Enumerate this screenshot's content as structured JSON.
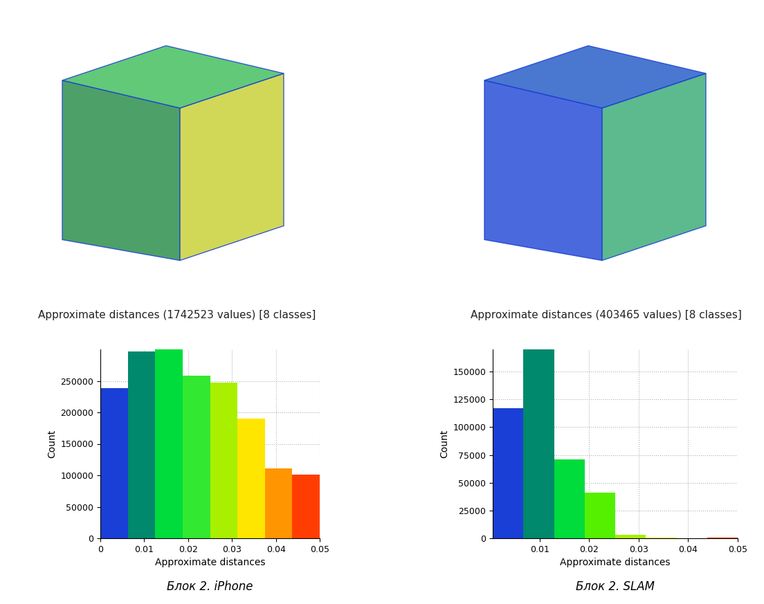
{
  "chart_data": [
    {
      "type": "histogram",
      "title": "Approximate distances (1742523 values) [8 classes]",
      "caption": "Блок 2. iPhone",
      "x_label": "Approximate distances",
      "y_label": "Count",
      "bins": [
        0,
        0.00625,
        0.0125,
        0.01875,
        0.025,
        0.03125,
        0.0375,
        0.04375,
        0.05
      ],
      "counts": [
        238000,
        297000,
        300000,
        258000,
        247000,
        190000,
        111000,
        101000
      ],
      "colors": [
        "#1a3fd6",
        "#00896c",
        "#00dc3c",
        "#33e830",
        "#a8f000",
        "#ffe600",
        "#ff9500",
        "#ff3d00"
      ],
      "xlim": [
        0,
        0.05
      ],
      "ylim": [
        0,
        300000
      ],
      "xticks": [
        0,
        0.01,
        0.02,
        0.03,
        0.04,
        0.05
      ],
      "yticks": [
        0,
        50000,
        100000,
        150000,
        200000,
        250000
      ],
      "grid": true
    },
    {
      "type": "histogram",
      "title": "Approximate distances (403465 values) [8 classes]",
      "caption": "Блок 2. SLAM",
      "x_label": "Approximate distances",
      "y_label": "Count",
      "bins": [
        0.0005,
        0.0066875,
        0.012875,
        0.0190625,
        0.02525,
        0.0314375,
        0.037625,
        0.0438125,
        0.05
      ],
      "counts": [
        117000,
        170000,
        71000,
        41000,
        3000,
        500,
        300,
        800
      ],
      "colors": [
        "#1a3fd6",
        "#00896c",
        "#00dc3c",
        "#55f000",
        "#a8f000",
        "#ffe600",
        "#ff9500",
        "#ff3d00"
      ],
      "xlim": [
        0.0005,
        0.05
      ],
      "ylim": [
        0,
        170000
      ],
      "xticks": [
        0.01,
        0.02,
        0.03,
        0.04,
        0.05
      ],
      "yticks": [
        0,
        25000,
        50000,
        75000,
        100000,
        125000,
        150000
      ],
      "grid": true
    }
  ]
}
